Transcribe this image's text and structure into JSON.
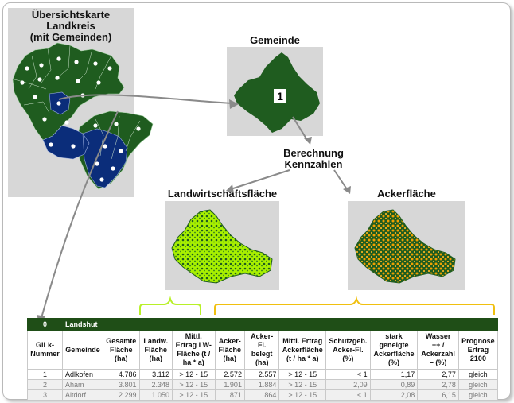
{
  "titles": {
    "overview_line1": "Übersichtskarte Landkreis",
    "overview_line2": "(mit Gemeinden)",
    "gemeinde": "Gemeinde",
    "calc_line1": "Berechnung",
    "calc_line2": "Kennzahlen",
    "lw": "Landwirtschaftsfläche",
    "acker": "Ackerfläche"
  },
  "municipality_number": "1",
  "colors": {
    "forest": "#1f5c1f",
    "lime": "#a8f000",
    "orange": "#f0a000",
    "navy": "#0b2d7a",
    "bracket_lime": "#b8f028",
    "bracket_orange": "#f0c010"
  },
  "table": {
    "region_id": "0",
    "region_name": "Landshut",
    "headers": [
      "GiLk-Nummer",
      "Gemeinde",
      "Gesamte Fläche (ha)",
      "Landw. Fläche (ha)",
      "Mittl. Ertrag LW-Fläche (t / ha * a)",
      "Acker-Fläche (ha)",
      "Acker-Fl. belegt (ha)",
      "Mittl. Ertrag Ackerfläche (t / ha * a)",
      "Schutzgeb. Acker-Fl. (%)",
      "stark geneigte Ackerfläche (%)",
      "Wasser ++ / Ackerzahl – (%)",
      "Prognose Ertrag 2100"
    ],
    "rows": [
      [
        "1",
        "Adlkofen",
        "4.786",
        "3.112",
        "> 12 - 15",
        "2.572",
        "2.557",
        "> 12 - 15",
        "< 1",
        "1,17",
        "2,77",
        "gleich"
      ],
      [
        "2",
        "Aham",
        "3.801",
        "2.348",
        "> 12 - 15",
        "1.901",
        "1.884",
        "> 12 - 15",
        "2,09",
        "0,89",
        "2,78",
        "gleich"
      ],
      [
        "3",
        "Altdorf",
        "2.299",
        "1.050",
        "> 12 - 15",
        "871",
        "864",
        "> 12 - 15",
        "< 1",
        "2,08",
        "6,15",
        "gleich"
      ]
    ]
  }
}
